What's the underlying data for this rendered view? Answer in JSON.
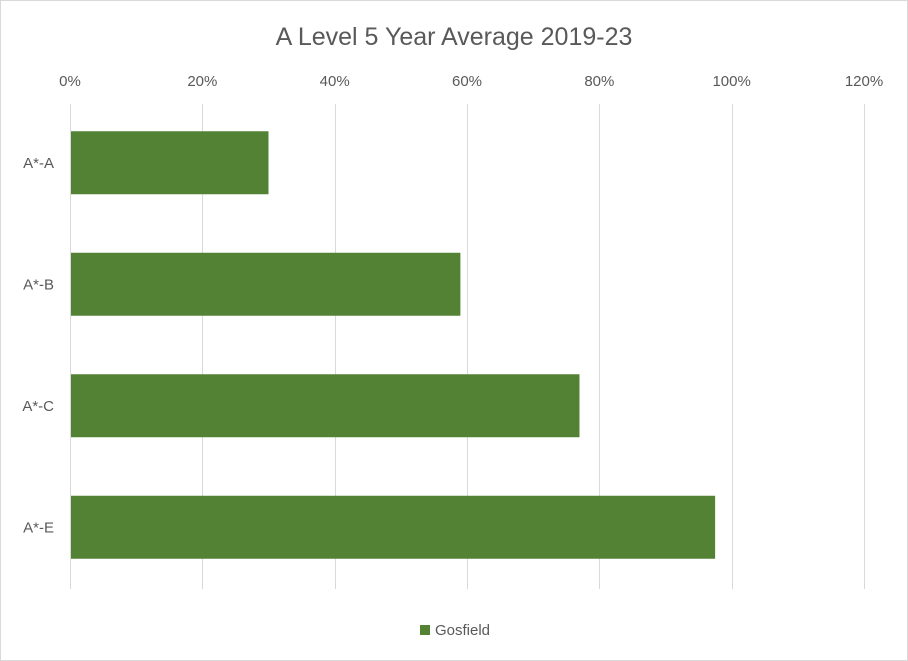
{
  "chart_data": {
    "type": "bar",
    "orientation": "horizontal",
    "title": "A Level 5 Year Average 2019-23",
    "categories": [
      "A*-A",
      "A*-B",
      "A*-C",
      "A*-E"
    ],
    "series": [
      {
        "name": "Gosfield",
        "values": [
          0.3,
          0.59,
          0.77,
          0.975
        ],
        "color": "#548235"
      }
    ],
    "xlim": [
      0,
      1.2
    ],
    "x_ticks": [
      0,
      0.2,
      0.4,
      0.6,
      0.8,
      1.0,
      1.2
    ],
    "x_tick_labels": [
      "0%",
      "20%",
      "40%",
      "60%",
      "80%",
      "100%",
      "120%"
    ],
    "x_axis_position": "top",
    "grid": true,
    "legend_position": "bottom"
  }
}
